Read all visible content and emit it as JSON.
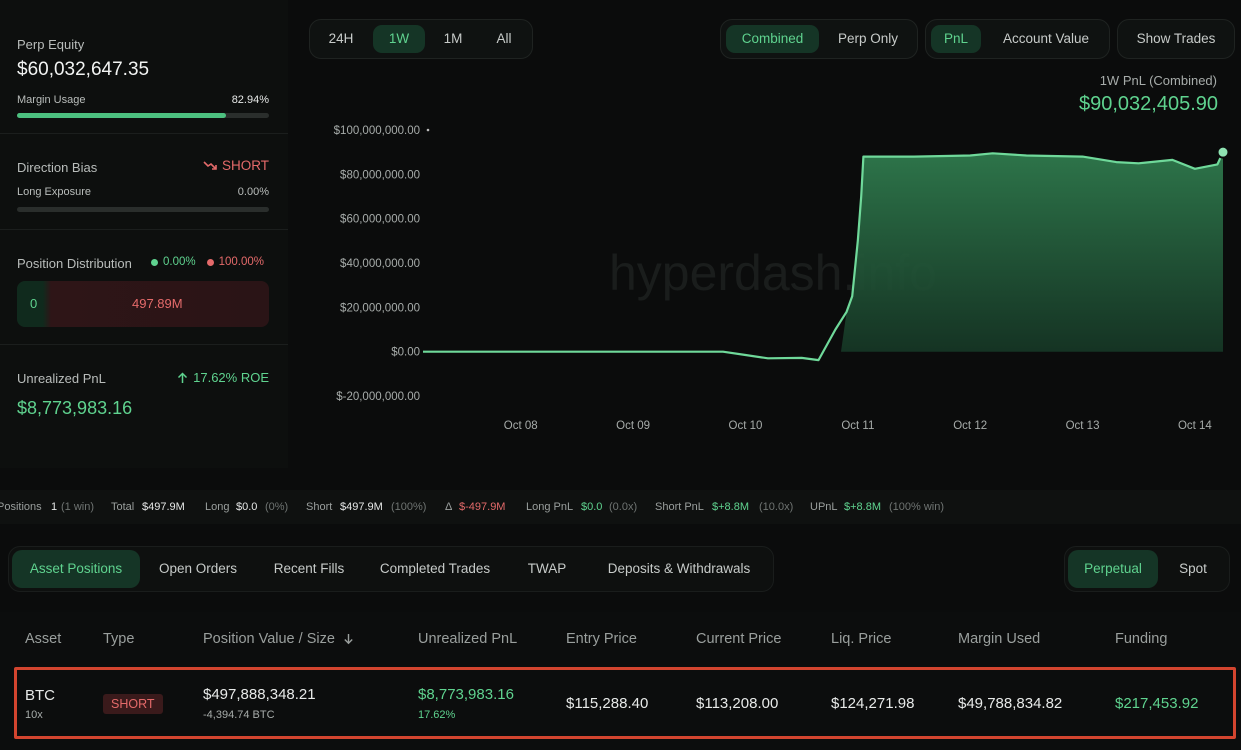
{
  "left": {
    "perp_equity_label": "Perp Equity",
    "perp_equity_value": "$60,032,647.35",
    "margin_usage_label": "Margin Usage",
    "margin_usage_value": "82.94%",
    "margin_usage_fraction": 0.8294,
    "direction_bias_label": "Direction Bias",
    "direction_bias_value": "SHORT",
    "direction_bias_icon": "trend-down-icon",
    "long_exposure_label": "Long Exposure",
    "long_exposure_value": "0.00%",
    "long_exposure_fraction": 0.0,
    "position_distribution_label": "Position Distribution",
    "dist_long_pct": "0.00%",
    "dist_short_pct": "100.00%",
    "dist_long_amount": "0",
    "dist_short_amount": "497.89M",
    "unrealized_pnl_label": "Unrealized PnL",
    "roe_text": "17.62% ROE",
    "unrealized_pnl_value": "$8,773,983.16"
  },
  "chart_controls": {
    "ranges": [
      "24H",
      "1W",
      "1M",
      "All"
    ],
    "active_range": "1W",
    "modes": [
      "Combined",
      "Perp Only"
    ],
    "active_mode": "Combined",
    "metrics": [
      "PnL",
      "Account Value"
    ],
    "active_metric": "PnL",
    "show_trades_label": "Show Trades"
  },
  "chart_header": {
    "caption": "1W PnL (Combined)",
    "value": "$90,032,405.90"
  },
  "watermark": "hyperdash.info",
  "chart_data": {
    "type": "area",
    "title": "1W PnL (Combined)",
    "ylim": [
      -20000000,
      100000000
    ],
    "y_ticks": [
      100000000,
      80000000,
      60000000,
      40000000,
      20000000,
      0,
      -20000000
    ],
    "y_tick_labels": [
      "$100,000,000.00",
      "$80,000,000.00",
      "$60,000,000.00",
      "$40,000,000.00",
      "$20,000,000.00",
      "$0.00",
      "$-20,000,000.00"
    ],
    "x_tick_labels": [
      "Oct 08",
      "Oct 09",
      "Oct 10",
      "Oct 11",
      "Oct 12",
      "Oct 13",
      "Oct 14"
    ],
    "x_ticks": [
      1,
      2,
      3,
      4,
      5,
      6,
      7
    ],
    "xlim": [
      0.13,
      7.25
    ],
    "grid": false,
    "line_color": "#6fd99a",
    "series": [
      {
        "x": [
          0.13,
          1,
          2,
          2.8,
          3.0,
          3.2,
          3.5,
          3.65,
          3.8,
          3.9,
          3.95,
          4.0,
          4.03,
          4.05,
          4.5,
          5.0,
          5.2,
          5.5,
          6.0,
          6.3,
          6.5,
          6.8,
          7.0,
          7.2,
          7.25
        ],
        "y": [
          0,
          0,
          0,
          0,
          -1500000,
          -3000000,
          -2800000,
          -3800000,
          10000000,
          18000000,
          25000000,
          50000000,
          70000000,
          88000000,
          88000000,
          88500000,
          89500000,
          88500000,
          88000000,
          85500000,
          85000000,
          86500000,
          82500000,
          84500000,
          90000000
        ]
      }
    ]
  },
  "stats_row": {
    "positions_label": "Positions",
    "positions_value": "1",
    "positions_win": "(1 win)",
    "total_label": "Total",
    "total_value": "$497.9M",
    "long_label": "Long",
    "long_value": "$0.0",
    "long_pct": "(0%)",
    "short_label": "Short",
    "short_value": "$497.9M",
    "short_pct": "(100%)",
    "delta_label": "Δ",
    "delta_value": "$-497.9M",
    "long_pnl_label": "Long PnL",
    "long_pnl_value": "$0.0",
    "long_pnl_x": "(0.0x)",
    "short_pnl_label": "Short PnL",
    "short_pnl_value": "$+8.8M",
    "short_pnl_x": "(10.0x)",
    "upnl_label": "UPnL",
    "upnl_value": "$+8.8M",
    "upnl_win": "(100% win)"
  },
  "tabs": [
    "Asset Positions",
    "Open Orders",
    "Recent Fills",
    "Completed Trades",
    "TWAP",
    "Deposits & Withdrawals"
  ],
  "active_tab": "Asset Positions",
  "market_toggle": [
    "Perpetual",
    "Spot"
  ],
  "active_market": "Perpetual",
  "table": {
    "headers": [
      "Asset",
      "Type",
      "Position Value / Size",
      "Unrealized PnL",
      "Entry Price",
      "Current Price",
      "Liq. Price",
      "Margin Used",
      "Funding"
    ],
    "sort_icon": "arrow-down-icon",
    "row": {
      "asset": "BTC",
      "leverage": "10x",
      "type": "SHORT",
      "position_value": "$497,888,348.21",
      "position_size": "-4,394.74 BTC",
      "unrealized_pnl": "$8,773,983.16",
      "unrealized_pct": "17.62%",
      "entry_price": "$115,288.40",
      "current_price": "$113,208.00",
      "liq_price": "$124,271.98",
      "margin_used": "$49,788,834.82",
      "funding": "$217,453.92"
    }
  }
}
